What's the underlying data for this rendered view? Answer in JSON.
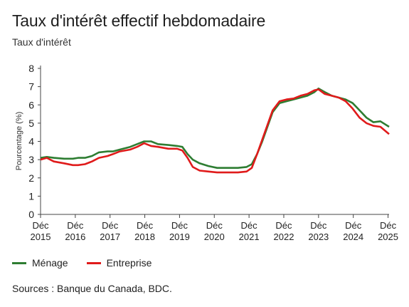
{
  "title": "Taux d'intérêt effectif hebdomadaire",
  "subtitle": "Taux d'intérêt",
  "source": "Sources : Banque du Canada, BDC.",
  "colors": {
    "menage": "#2e7d32",
    "entreprise": "#e01b1b",
    "axis": "#444444",
    "text": "#222222"
  },
  "legend": [
    {
      "name": "Ménage",
      "color": "#2e7d32"
    },
    {
      "name": "Entreprise",
      "color": "#e01b1b"
    }
  ],
  "chart_data": {
    "type": "line",
    "title": "Taux d'intérêt effectif hebdomadaire",
    "ylabel": "Pourcentage (%)",
    "xlabel": "",
    "ylim": [
      0,
      8
    ],
    "xlim": [
      2015.92,
      2025.95
    ],
    "yticks": [
      "0",
      "1",
      "2",
      "3",
      "4",
      "5",
      "6",
      "7",
      "8"
    ],
    "xticks": [
      {
        "t": 2015.92,
        "label": [
          "Déc",
          "2015"
        ]
      },
      {
        "t": 2016.92,
        "label": [
          "Déc",
          "2016"
        ]
      },
      {
        "t": 2017.92,
        "label": [
          "Déc",
          "2017"
        ]
      },
      {
        "t": 2018.92,
        "label": [
          "Déc",
          "2018"
        ]
      },
      {
        "t": 2019.92,
        "label": [
          "Déc",
          "2019"
        ]
      },
      {
        "t": 2020.92,
        "label": [
          "Déc",
          "2020"
        ]
      },
      {
        "t": 2021.92,
        "label": [
          "Déc",
          "2021"
        ]
      },
      {
        "t": 2022.92,
        "label": [
          "Déc",
          "2022"
        ]
      },
      {
        "t": 2023.92,
        "label": [
          "Déc",
          "2023"
        ]
      },
      {
        "t": 2024.92,
        "label": [
          "Déc",
          "2024"
        ]
      },
      {
        "t": 2025.92,
        "label": [
          "Déc",
          "2025"
        ]
      }
    ],
    "grid": false,
    "legend_position": "bottom-left",
    "series": [
      {
        "name": "Ménage",
        "color": "#2e7d32",
        "x": [
          2015.92,
          2016.1,
          2016.3,
          2016.6,
          2016.85,
          2017.0,
          2017.2,
          2017.4,
          2017.6,
          2017.85,
          2018.0,
          2018.2,
          2018.5,
          2018.7,
          2018.9,
          2019.1,
          2019.3,
          2019.6,
          2019.85,
          2020.0,
          2020.15,
          2020.3,
          2020.5,
          2020.75,
          2021.0,
          2021.3,
          2021.6,
          2021.85,
          2022.0,
          2022.15,
          2022.3,
          2022.45,
          2022.6,
          2022.8,
          2023.0,
          2023.2,
          2023.4,
          2023.6,
          2023.8,
          2023.92,
          2024.1,
          2024.3,
          2024.5,
          2024.7,
          2024.9,
          2025.1,
          2025.3,
          2025.5,
          2025.7,
          2025.95
        ],
        "y": [
          3.1,
          3.15,
          3.1,
          3.05,
          3.05,
          3.1,
          3.1,
          3.2,
          3.4,
          3.45,
          3.45,
          3.55,
          3.7,
          3.85,
          4.0,
          4.0,
          3.85,
          3.8,
          3.75,
          3.7,
          3.3,
          3.0,
          2.8,
          2.65,
          2.55,
          2.55,
          2.55,
          2.6,
          2.75,
          3.3,
          4.0,
          4.8,
          5.6,
          6.1,
          6.2,
          6.3,
          6.4,
          6.5,
          6.7,
          6.9,
          6.7,
          6.5,
          6.4,
          6.3,
          6.1,
          5.7,
          5.3,
          5.05,
          5.1,
          4.8
        ]
      },
      {
        "name": "Entreprise",
        "color": "#e01b1b",
        "x": [
          2015.92,
          2016.1,
          2016.3,
          2016.6,
          2016.85,
          2017.0,
          2017.2,
          2017.4,
          2017.6,
          2017.85,
          2018.0,
          2018.2,
          2018.5,
          2018.7,
          2018.9,
          2019.1,
          2019.3,
          2019.6,
          2019.85,
          2020.0,
          2020.15,
          2020.3,
          2020.5,
          2020.75,
          2021.0,
          2021.3,
          2021.6,
          2021.85,
          2022.0,
          2022.15,
          2022.3,
          2022.45,
          2022.6,
          2022.8,
          2023.0,
          2023.2,
          2023.4,
          2023.6,
          2023.8,
          2023.92,
          2024.1,
          2024.3,
          2024.5,
          2024.7,
          2024.9,
          2025.1,
          2025.3,
          2025.5,
          2025.7,
          2025.95
        ],
        "y": [
          3.0,
          3.1,
          2.9,
          2.8,
          2.7,
          2.7,
          2.75,
          2.9,
          3.1,
          3.2,
          3.3,
          3.45,
          3.55,
          3.7,
          3.9,
          3.75,
          3.7,
          3.6,
          3.6,
          3.5,
          3.1,
          2.6,
          2.4,
          2.35,
          2.3,
          2.3,
          2.3,
          2.35,
          2.55,
          3.3,
          4.1,
          4.9,
          5.7,
          6.2,
          6.3,
          6.35,
          6.5,
          6.6,
          6.8,
          6.85,
          6.6,
          6.5,
          6.4,
          6.2,
          5.8,
          5.3,
          5.0,
          4.85,
          4.8,
          4.4
        ]
      }
    ]
  }
}
